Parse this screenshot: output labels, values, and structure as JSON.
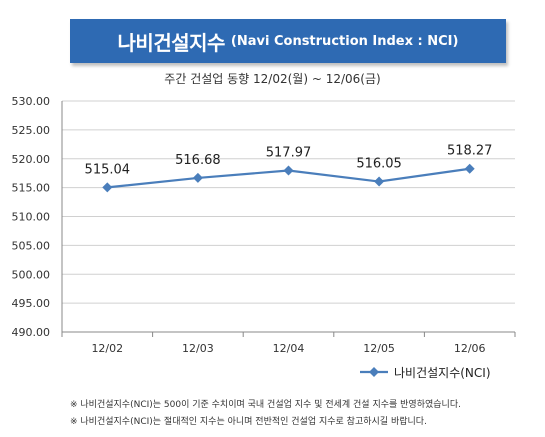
{
  "header": {
    "title_main": "나비건설지수",
    "title_sub": "(Navi Construction Index : NCI)",
    "subtitle": "주간 건설업 동향 12/02(월) ~ 12/06(금)",
    "banner_color": "#2e6ab3"
  },
  "chart_data": {
    "type": "line",
    "categories": [
      "12/02",
      "12/03",
      "12/04",
      "12/05",
      "12/06"
    ],
    "series": [
      {
        "name": "나비건설지수(NCI)",
        "values": [
          515.04,
          516.68,
          517.97,
          516.05,
          518.27
        ],
        "value_labels": [
          "515.04",
          "516.68",
          "517.97",
          "516.05",
          "518.27"
        ],
        "color": "#4a7ebb",
        "marker": "diamond"
      }
    ],
    "yticks": [
      "530.00",
      "525.00",
      "520.00",
      "515.00",
      "510.00",
      "505.00",
      "500.00",
      "495.00",
      "490.00"
    ],
    "ylim": [
      490,
      530
    ],
    "grid": true,
    "legend": "bottom-right"
  },
  "notes": [
    "※ 나비건설지수(NCI)는 500이 기준 수치이며 국내 건설업 지수 및 전세계 건설 지수를 반영하였습니다.",
    "※ 나비건설지수(NCI)는 절대적인 지수는 아니며 전반적인 건설업 지수로 참고하시길 바랍니다."
  ]
}
